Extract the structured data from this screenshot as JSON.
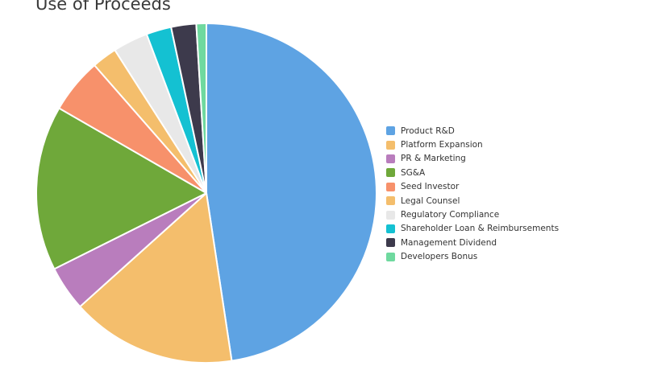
{
  "chart_data": {
    "type": "pie",
    "title": "Use of Proceeds",
    "legend_position": "right",
    "categories": [
      "Product R&D",
      "Platform Expansion",
      "PR & Marketing",
      "SG&A",
      "Seed Investor",
      "Legal Counsel",
      "Regulatory Compliance",
      "Shareholder Loan & Reimbursements",
      "Management Dividend",
      "Developers Bonus"
    ],
    "values": [
      50.0,
      16.5,
      4.5,
      16.5,
      5.5,
      2.5,
      3.5,
      2.5,
      2.5,
      1.0
    ],
    "colors": [
      "#5ea3e3",
      "#f4be6c",
      "#b97dbd",
      "#6fa83a",
      "#f7916b",
      "#f4be6c",
      "#e8e8e8",
      "#14c1d2",
      "#3d3a4c",
      "#6fd99f"
    ]
  }
}
